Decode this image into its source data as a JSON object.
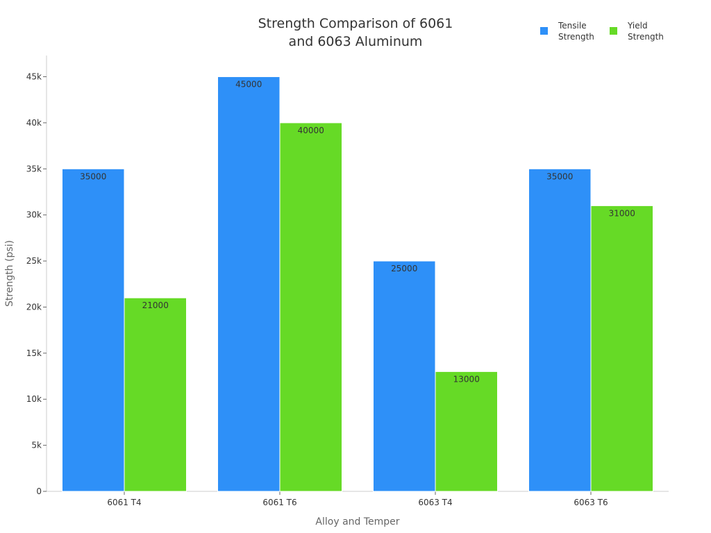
{
  "chart_data": {
    "type": "bar",
    "title": [
      "Strength Comparison of 6061",
      "and 6063 Aluminum"
    ],
    "xlabel": "Alloy and Temper",
    "ylabel": "Strength (psi)",
    "categories": [
      "6061 T4",
      "6061 T6",
      "6063 T4",
      "6063 T6"
    ],
    "series": [
      {
        "name": [
          "Tensile",
          "Strength"
        ],
        "color": "#2E90F8",
        "values": [
          35000,
          45000,
          25000,
          35000
        ]
      },
      {
        "name": [
          "Yield",
          "Strength"
        ],
        "color": "#66DA26",
        "values": [
          21000,
          40000,
          13000,
          31000
        ]
      }
    ],
    "yticks": [
      0,
      5000,
      10000,
      15000,
      20000,
      25000,
      30000,
      35000,
      40000,
      45000
    ],
    "ytick_labels": [
      "0",
      "5k",
      "10k",
      "15k",
      "20k",
      "25k",
      "30k",
      "35k",
      "40k",
      "45k"
    ],
    "ylim": [
      0,
      47300
    ],
    "grid": false,
    "legend": "top-right"
  }
}
